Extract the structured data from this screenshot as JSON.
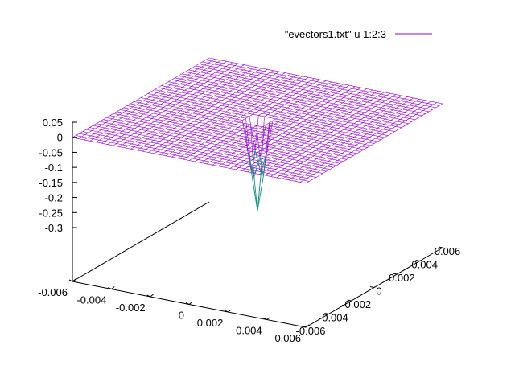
{
  "chart_data": {
    "type": "surface",
    "title": "",
    "legend": {
      "label": "\"evectors1.txt\" u 1:2:3",
      "placement": "top-right"
    },
    "colors": {
      "surface_top": "#9400d3",
      "surface_bottom": "#009e73",
      "axes": "#000000"
    },
    "x_axis": {
      "range": [
        -0.006,
        0.006
      ],
      "ticks": [
        "-0.006",
        "-0.004",
        "-0.002",
        "0",
        "0.002",
        "0.004",
        "0.006"
      ]
    },
    "y_axis": {
      "range": [
        -0.006,
        0.006
      ],
      "ticks": [
        "-0.006",
        "-0.004",
        "-0.002",
        "0",
        "0.002",
        "0.004",
        "0.006"
      ]
    },
    "z_axis": {
      "range": [
        -0.3,
        0.05
      ],
      "ticks": [
        "0.05",
        "0",
        "-0.05",
        "-0.1",
        "-0.15",
        "-0.2",
        "-0.25",
        "-0.3"
      ]
    },
    "surface": {
      "description_values": {
        "baseline_z": 0,
        "min_z": -0.3,
        "dip_center": [
          0,
          0
        ]
      }
    },
    "grid": false
  }
}
